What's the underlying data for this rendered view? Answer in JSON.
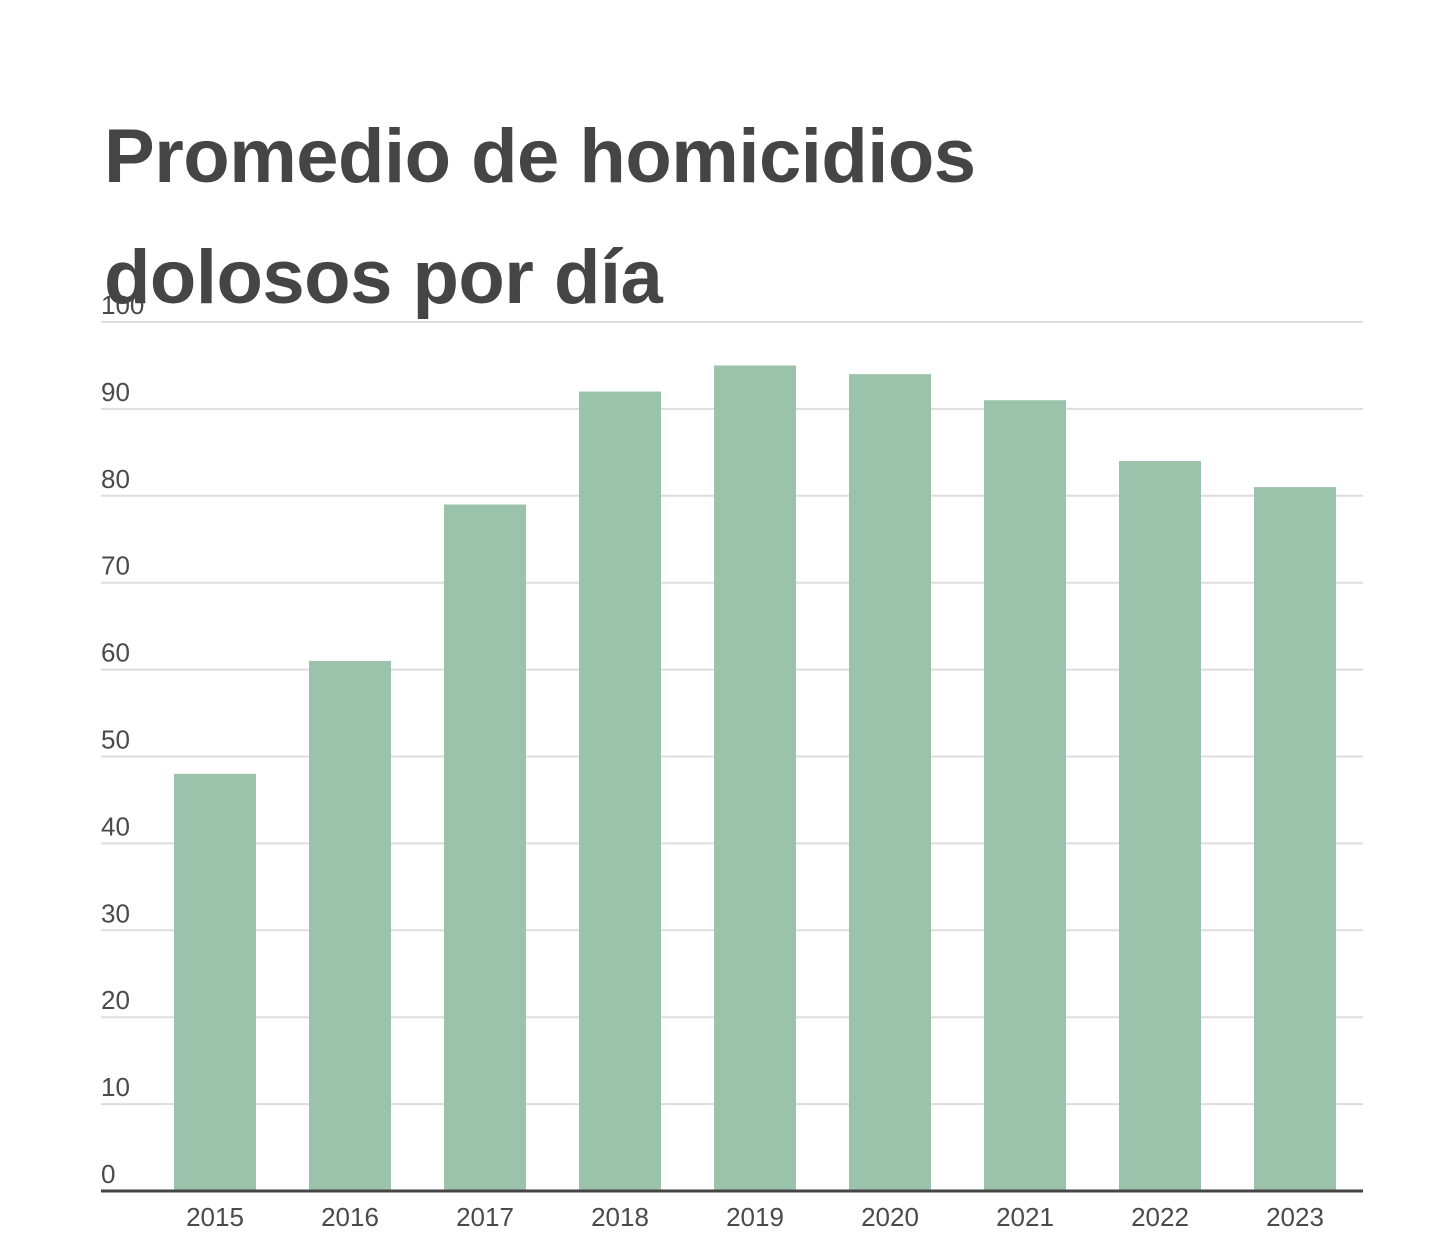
{
  "chart_data": {
    "type": "bar",
    "title": "Promedio de homicidios dolosos por día",
    "xlabel": "",
    "ylabel": "",
    "categories": [
      "2015",
      "2016",
      "2017",
      "2018",
      "2019",
      "2020",
      "2021",
      "2022",
      "2023"
    ],
    "values": [
      48,
      61,
      79,
      92,
      95,
      94,
      91,
      84,
      81
    ],
    "ylim": [
      0,
      100
    ],
    "yticks": [
      "0",
      "10",
      "20",
      "30",
      "40",
      "50",
      "60",
      "70",
      "80",
      "90",
      "100"
    ],
    "grid": true,
    "legend": "none",
    "colors": {
      "bar": "#9bc2aa",
      "grid": "#dddddd",
      "axis": "#454545",
      "text": "#454545"
    }
  }
}
